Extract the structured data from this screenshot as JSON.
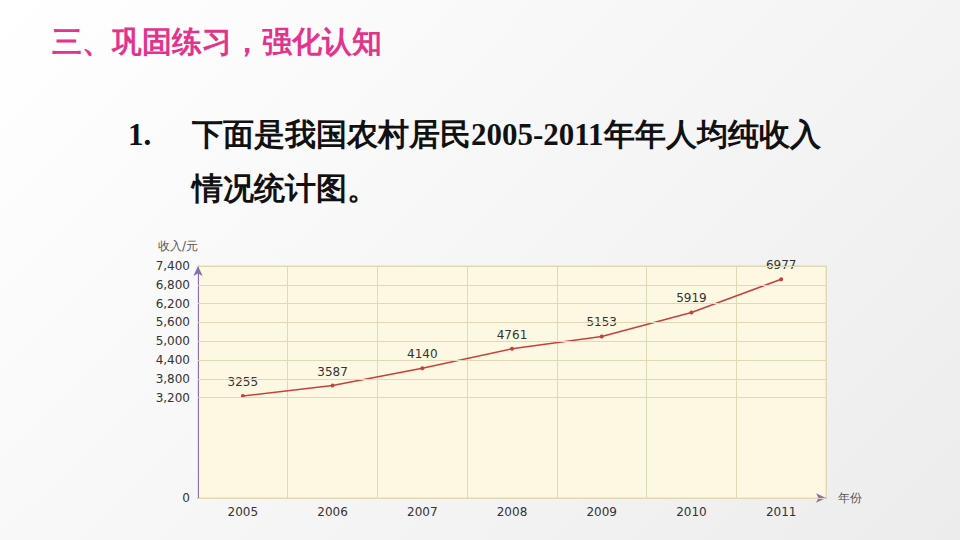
{
  "heading": "三、巩固练习，强化认知",
  "question": {
    "number": "1.",
    "text": "下面是我国农村居民2005-2011年年人均纯收入情况统计图。"
  },
  "chart_data": {
    "type": "line",
    "y_label": "收入/元",
    "x_label": "年份",
    "categories": [
      "2005",
      "2006",
      "2007",
      "2008",
      "2009",
      "2010",
      "2011"
    ],
    "values": [
      3255,
      3587,
      4140,
      4761,
      5153,
      5919,
      6977
    ],
    "color": "#c8403c",
    "marker": "circle",
    "ylim": [
      0,
      7400
    ],
    "yticks": [
      0,
      3200,
      3800,
      4400,
      5000,
      5600,
      6200,
      6800,
      7400
    ],
    "grid": true,
    "data_labels": true
  }
}
